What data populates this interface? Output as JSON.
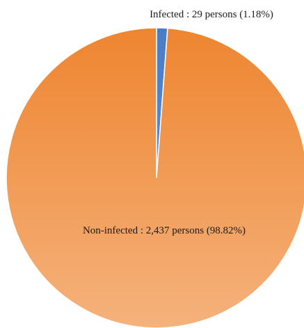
{
  "chart_data": {
    "type": "pie",
    "title": "",
    "categories": [
      "Infected",
      "Non-infected"
    ],
    "values": [
      29,
      2437
    ],
    "percentages": [
      1.18,
      98.82
    ],
    "units": "persons",
    "colors": [
      "#4a7cc4",
      "#ef8a33"
    ],
    "data_labels": [
      "Infected : 29 persons (1.18%)",
      "Non-infected : 2,437 persons (98.82%)"
    ],
    "legend": "none",
    "start_angle": "12 o'clock, clockwise"
  }
}
